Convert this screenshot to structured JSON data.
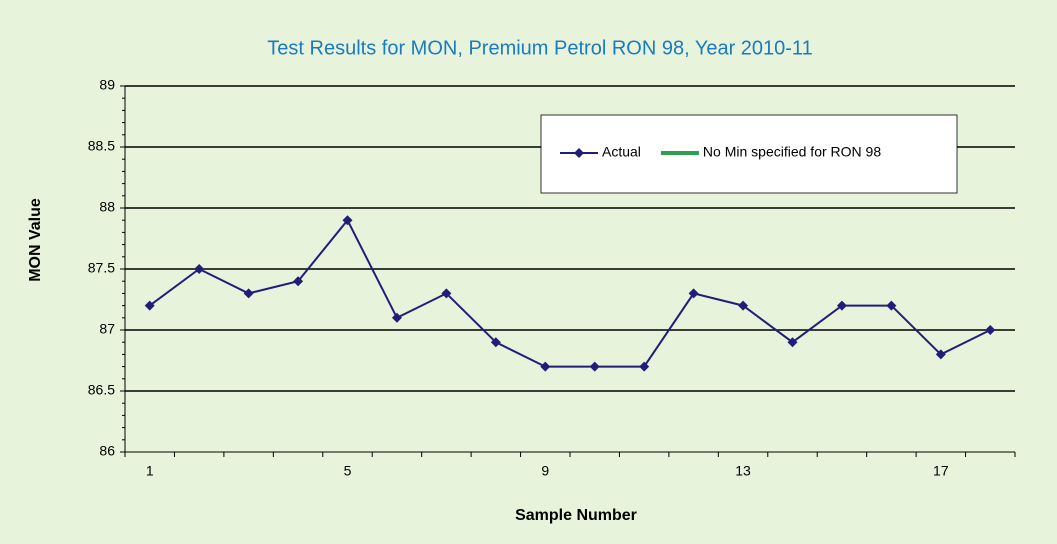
{
  "chart_data": {
    "type": "line",
    "title": "Test Results for MON, Premium Petrol RON 98, Year 2010-11",
    "x_label": "Sample Number",
    "y_label": "MON Value",
    "categories": [
      1,
      null,
      null,
      null,
      5,
      null,
      null,
      null,
      9,
      null,
      null,
      null,
      13,
      null,
      null,
      null,
      17,
      null
    ],
    "series": [
      {
        "name": "Actual",
        "color": "#1f1f7a",
        "values": [
          87.2,
          87.5,
          87.3,
          87.4,
          87.9,
          87.1,
          87.3,
          86.9,
          86.7,
          86.7,
          86.7,
          87.3,
          87.2,
          86.9,
          87.2,
          87.2,
          86.8,
          87.0
        ]
      },
      {
        "name": "No Min specified for RON 98",
        "color": "#2e9e4f",
        "values": [
          null,
          null,
          null,
          null,
          null,
          null,
          null,
          null,
          null,
          null,
          null,
          null,
          null,
          null,
          null,
          null,
          null,
          null
        ]
      }
    ],
    "ylim": [
      86,
      89
    ],
    "yticks": [
      86,
      86.5,
      87,
      87.5,
      88,
      88.5,
      89
    ],
    "grid": true
  }
}
